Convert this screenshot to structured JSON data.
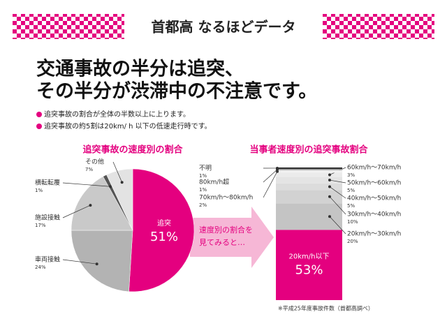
{
  "header": {
    "title": "首都高 なるほどデータ",
    "headline": [
      "交通事故の半分は追突、",
      "その半分が渋滞中の不注意です。"
    ],
    "bullets": [
      "追突事故の割合が全体の半数以上に上ります。",
      "追突事故の約5割は20km/ h 以下の低速走行時です。"
    ],
    "arrow_text": [
      "速度別の割合を",
      "見てみると…"
    ],
    "footnote": "※平成25年度事故件数（首都高調べ）"
  },
  "chart_data": [
    {
      "type": "pie",
      "title": "追突事故の速度別の割合",
      "categories": [
        "追突",
        "車両接触",
        "施設接触",
        "横転転覆",
        "その他"
      ],
      "values": [
        51,
        24,
        17,
        1,
        7
      ],
      "value_labels": [
        "51%",
        "24%",
        "17%",
        "1%",
        "7%"
      ],
      "colors": [
        "#e4007f",
        "#b3b3b3",
        "#c9c9c9",
        "#555555",
        "#e3e3e3"
      ]
    },
    {
      "type": "bar",
      "stacked": true,
      "title": "当事者速度別の追突事故割合",
      "series": [
        {
          "name": "20km/h以下",
          "color": "#e4007f",
          "values": [
            53
          ],
          "value_labels": [
            "53%"
          ]
        },
        {
          "name": "20km/h～30km/h",
          "color": "#c4c4c4",
          "values": [
            20
          ],
          "value_labels": [
            "20%"
          ]
        },
        {
          "name": "30km/h～40km/h",
          "color": "#d2d2d2",
          "values": [
            10
          ],
          "value_labels": [
            "10%"
          ]
        },
        {
          "name": "40km/h～50km/h",
          "color": "#dcdcdc",
          "values": [
            5
          ],
          "value_labels": [
            "5%"
          ]
        },
        {
          "name": "50km/h～60km/h",
          "color": "#e4e4e4",
          "values": [
            5
          ],
          "value_labels": [
            "5%"
          ]
        },
        {
          "name": "60km/h～70km/h",
          "color": "#ebebeb",
          "values": [
            3
          ],
          "value_labels": [
            "3%"
          ]
        },
        {
          "name": "70km/h～80km/h",
          "color": "#f0f0f0",
          "values": [
            2
          ],
          "value_labels": [
            "2%"
          ]
        },
        {
          "name": "80km/h超",
          "color": "#999999",
          "values": [
            1
          ],
          "value_labels": [
            "1%"
          ]
        },
        {
          "name": "不明",
          "color": "#222222",
          "values": [
            1
          ],
          "value_labels": [
            "1%"
          ]
        }
      ]
    }
  ]
}
